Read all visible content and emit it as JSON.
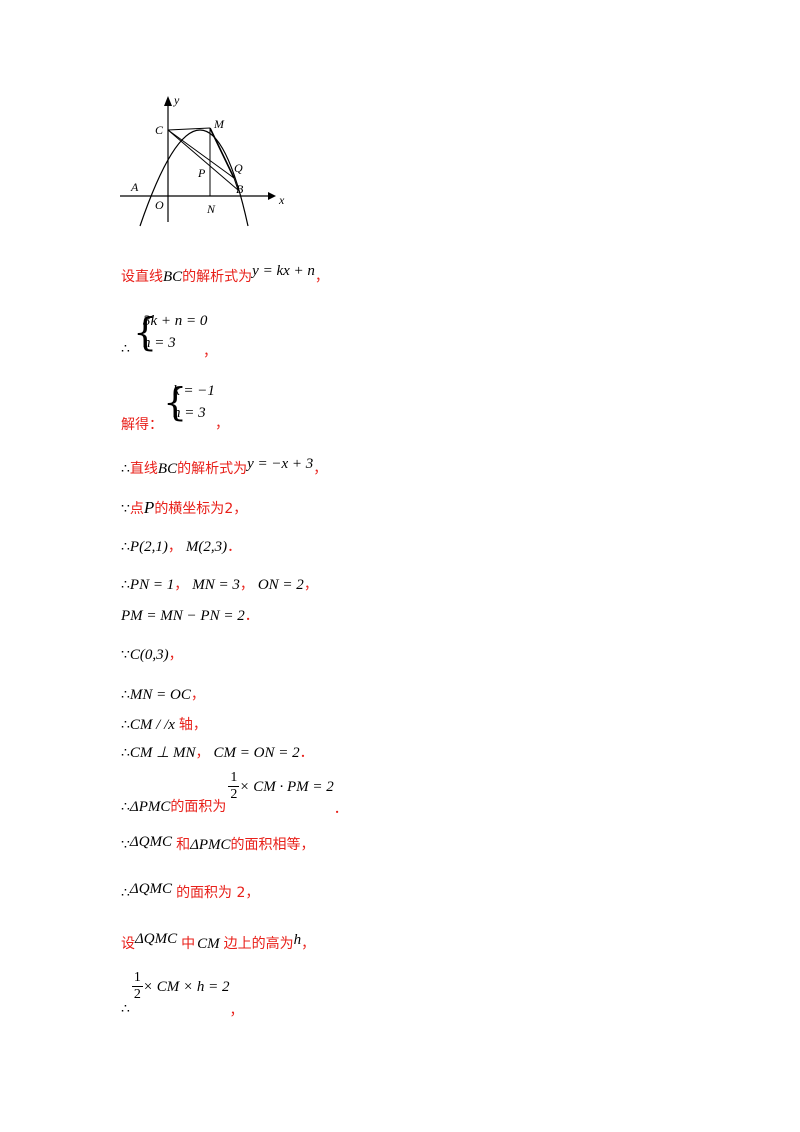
{
  "figure": {
    "labels": {
      "y": "y",
      "x": "x",
      "C": "C",
      "M": "M",
      "Q": "Q",
      "P": "P",
      "A": "A",
      "B": "B",
      "O": "O",
      "N": "N"
    }
  },
  "lines": {
    "l1": {
      "a": "设直线",
      "b": "BC",
      "c": "的解析式为",
      "d": "y = kx + n",
      "e": "，"
    },
    "l2": {
      "therefore": "∴",
      "eq1": "3k + n = 0",
      "eq2": "n = 3",
      "end": "，"
    },
    "l3": {
      "a": "解得：",
      "eq1": "k = −1",
      "eq2": "n = 3",
      "end": "，"
    },
    "l4": {
      "therefore": "∴",
      "a": "直线",
      "b": "BC",
      "c": "的解析式为",
      "d": "y = −x + 3",
      "e": "，"
    },
    "l5": {
      "because": "∵",
      "a": "点",
      "b": "P",
      "c": "的横坐标为",
      "d": "2，"
    },
    "l6": {
      "therefore": "∴",
      "a": "P(2,1)",
      "b": "，",
      "c": "M(2,3)",
      "d": "．"
    },
    "l7": {
      "therefore": "∴",
      "a": "PN = 1",
      "b": "，",
      "c": "MN = 3",
      "d": "，",
      "e": "ON = 2",
      "f": "，"
    },
    "l8": {
      "a": "PM = MN − PN = 2",
      "b": "．"
    },
    "l9": {
      "because": "∵",
      "a": "C(0,3)",
      "b": "，"
    },
    "l10": {
      "therefore": "∴",
      "a": "MN = OC",
      "b": "，"
    },
    "l11": {
      "therefore": "∴",
      "a": "CM / /x",
      "b": "轴，"
    },
    "l12": {
      "therefore": "∴",
      "a": "CM ⊥ MN",
      "b": "，",
      "c": "CM = ON = 2",
      "d": "．"
    },
    "l13": {
      "therefore": "∴",
      "a": "ΔPMC",
      "b": "的面积为",
      "num": "1",
      "den": "2",
      "c": "× CM · PM = 2",
      "d": "．"
    },
    "l14": {
      "because": "∵",
      "a": "ΔQMC",
      "b": "和",
      "c": "ΔPMC",
      "d": "的面积相等，"
    },
    "l15": {
      "therefore": "∴",
      "a": "ΔQMC",
      "b": "的面积为 2，"
    },
    "l16": {
      "a": "设",
      "b": "ΔQMC",
      "c": "中",
      "d": "CM",
      "e": "边上的高为",
      "f": "h",
      "g": "，"
    },
    "l17": {
      "therefore": "∴",
      "num": "1",
      "den": "2",
      "a": "× CM × h = 2",
      "b": "，"
    }
  }
}
